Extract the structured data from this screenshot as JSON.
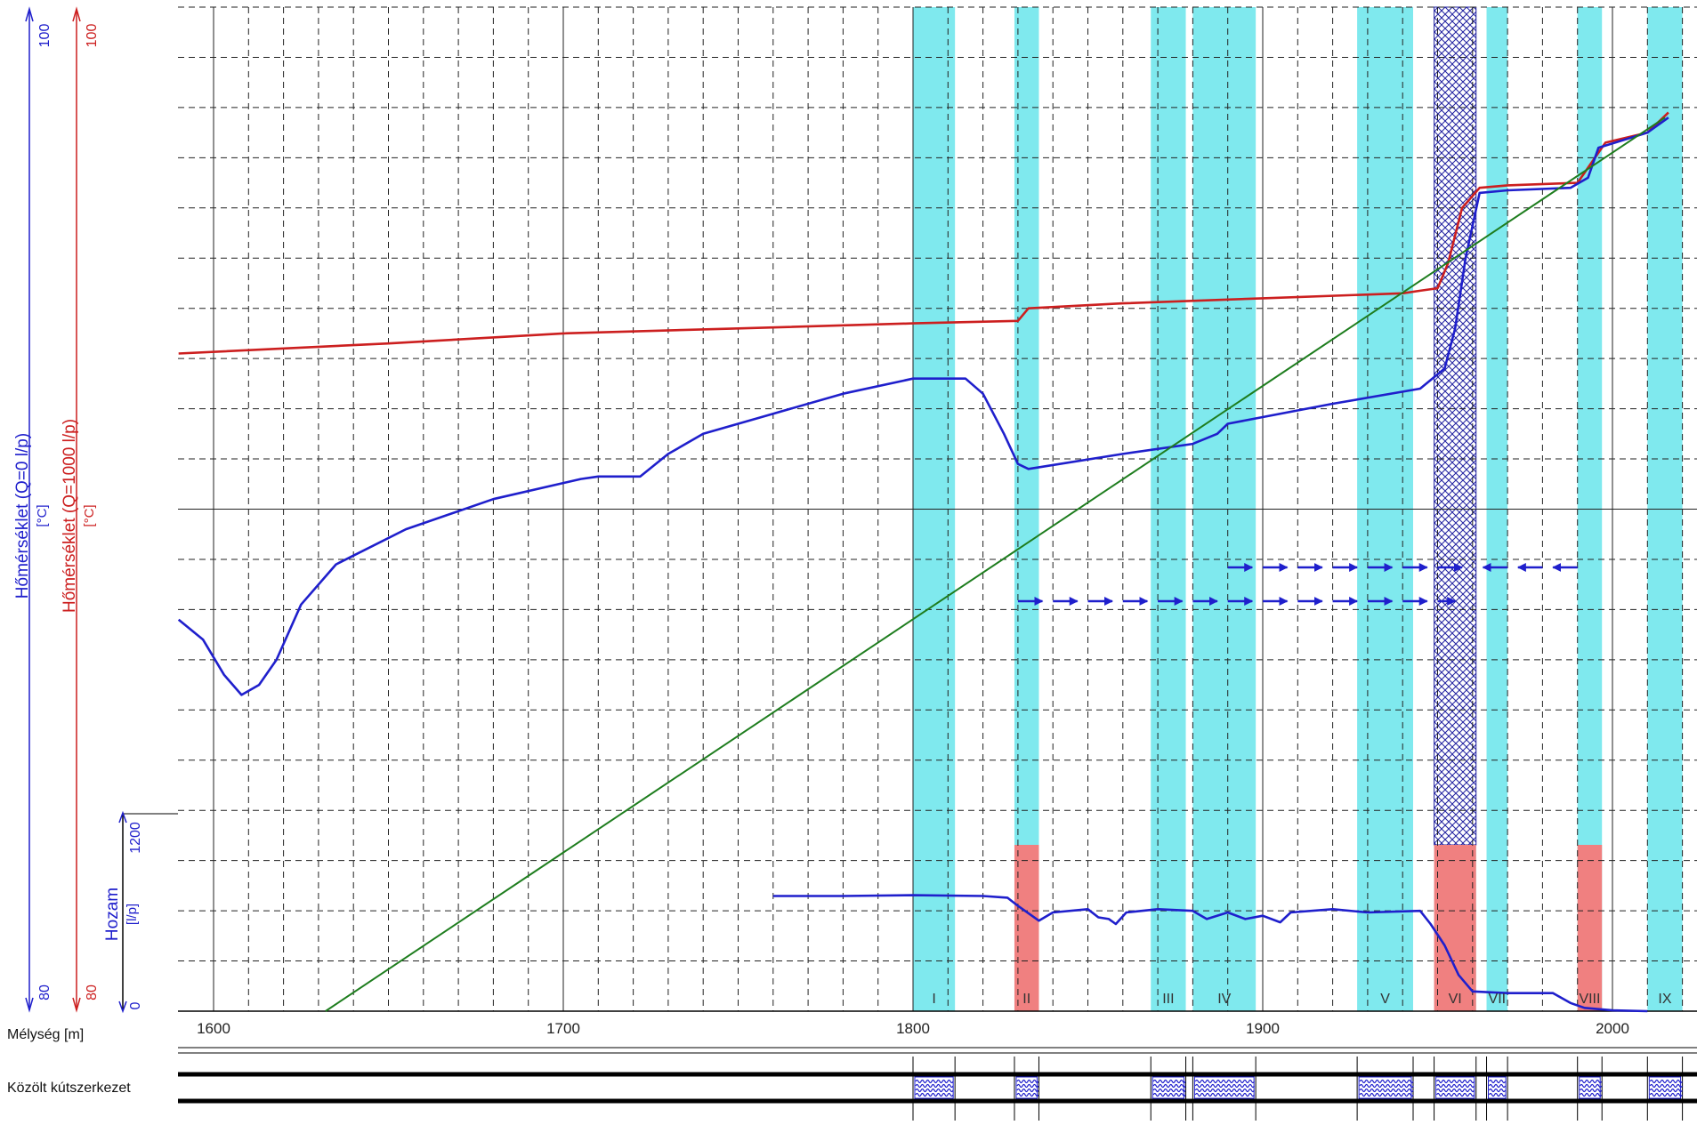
{
  "chart_data": {
    "type": "line",
    "x_label": "Mélység [m]",
    "x_range": [
      1590,
      2025
    ],
    "x_ticks": [
      1600,
      1700,
      1800,
      1900,
      2000
    ],
    "grid": true,
    "axes": [
      {
        "label": "Hőmérséklet (Q=0 l/p)",
        "unit": "[°C]",
        "top_tick": "100",
        "bottom_tick": "80",
        "range": [
          80,
          100
        ],
        "color": "#1f1fcc"
      },
      {
        "label": "Hőmérséklet (Q=1000 l/p)",
        "unit": "[°C]",
        "top_tick": "100",
        "bottom_tick": "80",
        "range": [
          80,
          100
        ],
        "color": "#cc1f1f"
      },
      {
        "label": "Hozam",
        "unit": "[l/p]",
        "top_tick": "1200",
        "bottom_tick": "0",
        "range": [
          0,
          1200
        ],
        "color": "#1f1fcc"
      }
    ],
    "series": [
      {
        "color": "#cc1f1f",
        "axis": 0,
        "points": [
          [
            1590,
            93.1
          ],
          [
            1650,
            93.3
          ],
          [
            1700,
            93.5
          ],
          [
            1750,
            93.6
          ],
          [
            1800,
            93.7
          ],
          [
            1830,
            93.75
          ],
          [
            1833,
            94.0
          ],
          [
            1860,
            94.1
          ],
          [
            1900,
            94.2
          ],
          [
            1940,
            94.3
          ],
          [
            1945,
            94.35
          ],
          [
            1950,
            94.4
          ],
          [
            1953,
            94.9
          ],
          [
            1957,
            96.0
          ],
          [
            1962,
            96.4
          ],
          [
            1970,
            96.45
          ],
          [
            1990,
            96.5
          ],
          [
            1994,
            96.9
          ],
          [
            1998,
            97.3
          ],
          [
            2010,
            97.5
          ],
          [
            2016,
            97.9
          ]
        ]
      },
      {
        "color": "#1f1fcc",
        "axis": 0,
        "points": [
          [
            1590,
            87.8
          ],
          [
            1597,
            87.4
          ],
          [
            1603,
            86.7
          ],
          [
            1608,
            86.3
          ],
          [
            1613,
            86.5
          ],
          [
            1618,
            87.0
          ],
          [
            1625,
            88.1
          ],
          [
            1635,
            88.9
          ],
          [
            1655,
            89.6
          ],
          [
            1680,
            90.2
          ],
          [
            1705,
            90.6
          ],
          [
            1710,
            90.65
          ],
          [
            1722,
            90.65
          ],
          [
            1730,
            91.1
          ],
          [
            1740,
            91.5
          ],
          [
            1760,
            91.9
          ],
          [
            1780,
            92.3
          ],
          [
            1800,
            92.6
          ],
          [
            1815,
            92.6
          ],
          [
            1820,
            92.3
          ],
          [
            1826,
            91.5
          ],
          [
            1830,
            90.9
          ],
          [
            1833,
            90.8
          ],
          [
            1860,
            91.1
          ],
          [
            1880,
            91.3
          ],
          [
            1887,
            91.5
          ],
          [
            1890,
            91.7
          ],
          [
            1920,
            92.1
          ],
          [
            1945,
            92.4
          ],
          [
            1952,
            92.8
          ],
          [
            1955,
            93.6
          ],
          [
            1958,
            95.0
          ],
          [
            1962,
            96.3
          ],
          [
            1970,
            96.35
          ],
          [
            1988,
            96.4
          ],
          [
            1993,
            96.6
          ],
          [
            1996,
            97.2
          ],
          [
            2010,
            97.5
          ],
          [
            2016,
            97.8
          ]
        ]
      },
      {
        "color": "#1e7d1e",
        "axis": 0,
        "points": [
          [
            1632,
            80.0
          ],
          [
            2015,
            97.8
          ]
        ]
      },
      {
        "color": "#1f1fcc",
        "axis": 2,
        "points": [
          [
            1760,
            700
          ],
          [
            1780,
            700
          ],
          [
            1800,
            705
          ],
          [
            1820,
            700
          ],
          [
            1827,
            690
          ],
          [
            1830,
            640
          ],
          [
            1834,
            580
          ],
          [
            1836,
            550
          ],
          [
            1840,
            600
          ],
          [
            1850,
            620
          ],
          [
            1853,
            570
          ],
          [
            1856,
            560
          ],
          [
            1858,
            530
          ],
          [
            1861,
            600
          ],
          [
            1870,
            620
          ],
          [
            1880,
            610
          ],
          [
            1884,
            560
          ],
          [
            1890,
            600
          ],
          [
            1895,
            560
          ],
          [
            1900,
            580
          ],
          [
            1905,
            540
          ],
          [
            1908,
            600
          ],
          [
            1920,
            620
          ],
          [
            1930,
            600
          ],
          [
            1945,
            610
          ],
          [
            1948,
            530
          ],
          [
            1952,
            400
          ],
          [
            1956,
            220
          ],
          [
            1960,
            120
          ],
          [
            1970,
            110
          ],
          [
            1983,
            110
          ],
          [
            1988,
            50
          ],
          [
            1992,
            20
          ],
          [
            2000,
            5
          ],
          [
            2010,
            0
          ]
        ]
      }
    ],
    "zones": [
      {
        "label": "I",
        "from": 1800,
        "to": 1812
      },
      {
        "label": "II",
        "from": 1829,
        "to": 1836
      },
      {
        "label": "III",
        "from": 1868,
        "to": 1878
      },
      {
        "label": "IV",
        "from": 1880,
        "to": 1898
      },
      {
        "label": "V",
        "from": 1927,
        "to": 1943
      },
      {
        "label": "VI",
        "from": 1949,
        "to": 1961
      },
      {
        "label": "VII",
        "from": 1964,
        "to": 1970
      },
      {
        "label": "VIII",
        "from": 1990,
        "to": 1997
      },
      {
        "label": "IX",
        "from": 2010,
        "to": 2020
      }
    ],
    "zone_color": "#7fe9ee",
    "hatch_zone": "VI",
    "hatch_color": "#2020a0",
    "red_zones": [
      "II",
      "VI",
      "VIII"
    ],
    "red_zone_color": "#f08080",
    "arrows": [
      {
        "row": 1,
        "from": 1890,
        "to": 1960,
        "direction": "right"
      },
      {
        "row": 1,
        "from": 1960,
        "to": 1990,
        "direction": "left"
      },
      {
        "row": 2,
        "from": 1830,
        "to": 1955,
        "direction": "right"
      }
    ],
    "arrow_color": "#1f1fcc"
  },
  "casing": {
    "label": "Közölt kútszerkezet",
    "screen_zones": [
      "I",
      "II",
      "III",
      "IV",
      "V",
      "VI",
      "VII",
      "VIII",
      "IX"
    ]
  }
}
